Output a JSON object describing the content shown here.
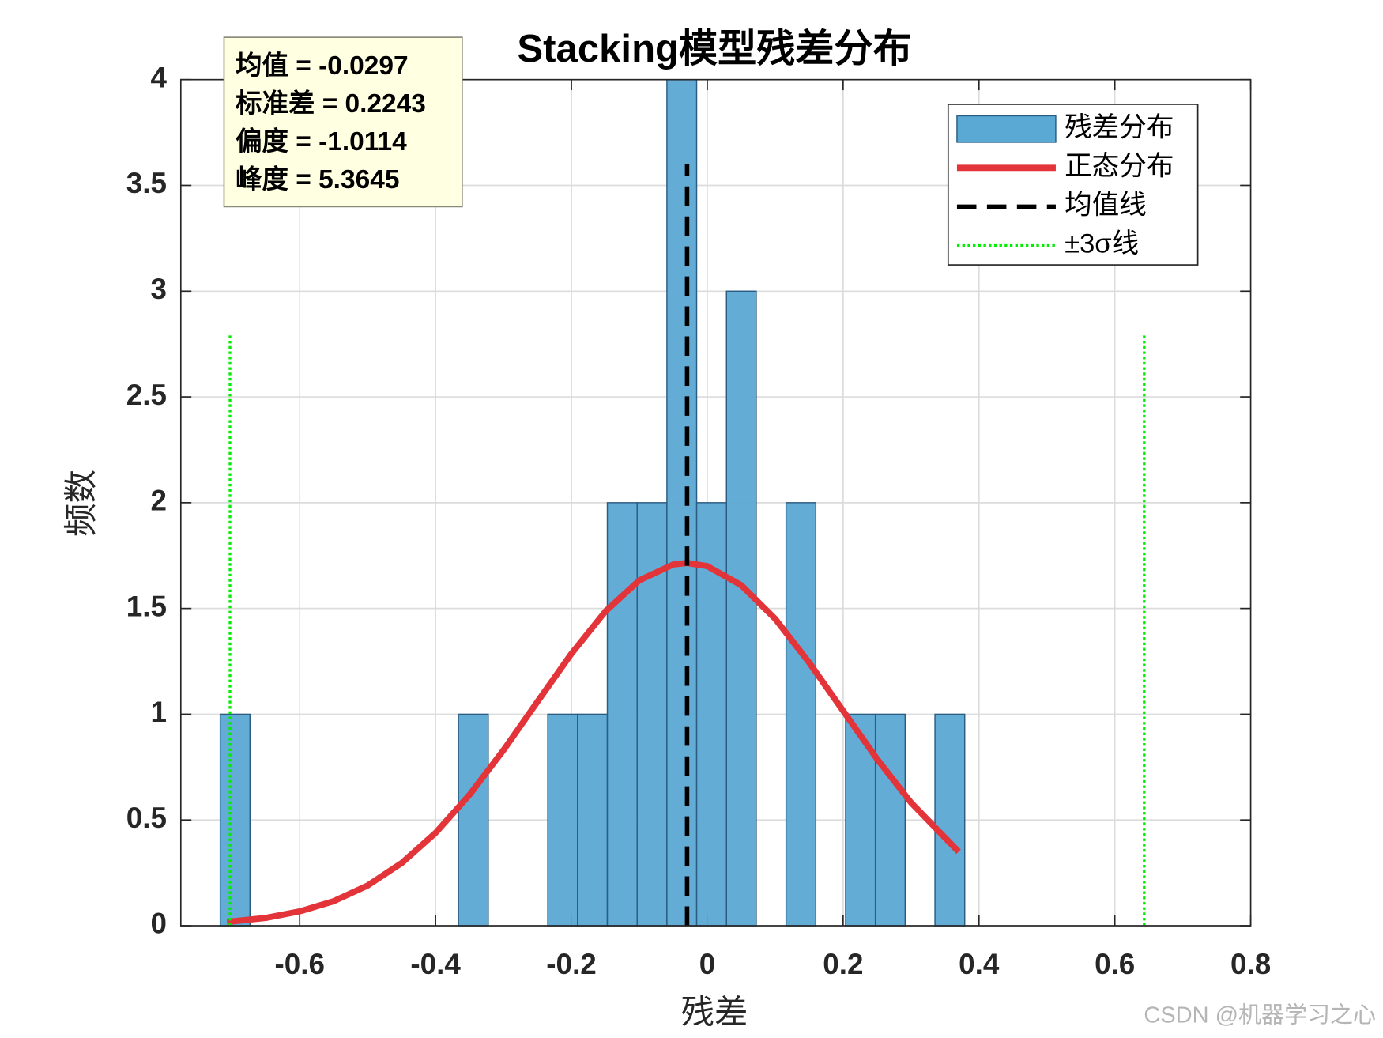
{
  "chart_data": {
    "type": "histogram",
    "title": "Stacking模型残差分布",
    "xlabel": "残差",
    "ylabel": "频数",
    "xlim": [
      -0.775,
      0.8
    ],
    "ylim": [
      0,
      4
    ],
    "xticks": [
      -0.6,
      -0.4,
      -0.2,
      0,
      0.2,
      0.4,
      0.6,
      0.8
    ],
    "yticks": [
      0,
      0.5,
      1,
      1.5,
      2,
      2.5,
      3,
      3.5,
      4
    ],
    "grid": true,
    "legend": "upper right",
    "stats": [
      "均值 = -0.0297",
      "标准差 = 0.2243",
      "偏度 = -1.0114",
      "峰度 = 5.3645"
    ],
    "series": [
      {
        "name": "残差分布",
        "type": "histogram",
        "color": "#5aa8d4",
        "bins": [
          -0.717,
          -0.6732,
          -0.6293,
          -0.5855,
          -0.5416,
          -0.4978,
          -0.454,
          -0.4101,
          -0.3663,
          -0.3224,
          -0.2786,
          -0.2348,
          -0.1909,
          -0.1471,
          -0.1032,
          -0.0594,
          -0.0156,
          0.0283,
          0.0721,
          0.116,
          0.1598,
          0.2036,
          0.2475,
          0.2913,
          0.3352,
          0.379
        ],
        "counts": [
          1,
          0,
          0,
          0,
          0,
          0,
          0,
          0,
          1,
          0,
          0,
          1,
          1,
          2,
          2,
          4,
          2,
          3,
          0,
          2,
          0,
          1,
          1,
          0,
          1
        ]
      },
      {
        "name": "正态分布",
        "type": "line",
        "color": "#e3343a",
        "line_style": "solid",
        "x": [
          -0.707,
          -0.65,
          -0.6,
          -0.55,
          -0.5,
          -0.45,
          -0.4,
          -0.35,
          -0.3,
          -0.25,
          -0.2,
          -0.15,
          -0.1,
          -0.05,
          -0.0297,
          0,
          0.05,
          0.1,
          0.15,
          0.2,
          0.25,
          0.3,
          0.37
        ],
        "values": [
          0.018,
          0.037,
          0.068,
          0.116,
          0.19,
          0.296,
          0.439,
          0.619,
          0.83,
          1.059,
          1.286,
          1.486,
          1.633,
          1.708,
          1.715,
          1.7,
          1.61,
          1.451,
          1.244,
          1.016,
          0.788,
          0.582,
          0.35
        ]
      },
      {
        "name": "均值线",
        "type": "line",
        "color": "#000000",
        "line_style": "dashed",
        "x": [
          -0.0297,
          -0.0297
        ],
        "values": [
          0,
          3.6
        ]
      },
      {
        "name": "±3σ线",
        "type": "line",
        "color": "#00ee00",
        "line_style": "dotted",
        "x": [
          -0.7026,
          -0.7026,
          null,
          0.6432,
          0.6432
        ],
        "values": [
          0,
          2.8,
          null,
          0,
          2.8
        ]
      }
    ],
    "watermark": "CSDN @机器学习之心"
  }
}
